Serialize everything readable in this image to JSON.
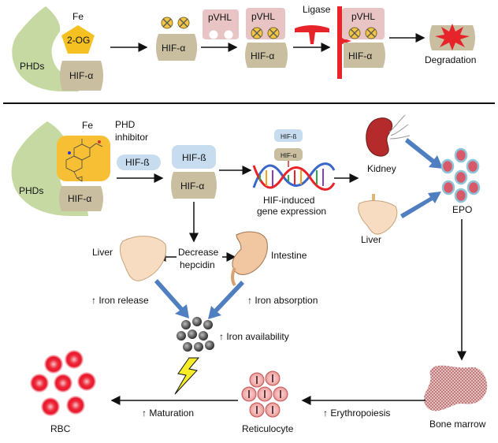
{
  "top_panel": {
    "phds_label": "PHDs",
    "fe_label": "Fe",
    "og_label": "2-OG",
    "hif_alpha": "HIF-α",
    "pvhl": "pVHL",
    "ligase": "Ligase",
    "degradation": "Degradation"
  },
  "bottom_panel": {
    "phds_label": "PHDs",
    "fe_label": "Fe",
    "phd_inhibitor": "PHD\ninhibitor",
    "hif_beta": "HIF-ß",
    "hif_alpha": "HIF-α",
    "hif_induced": "HIF-induced\ngene expression",
    "kidney": "Kidney",
    "liver_right": "Liver",
    "epo": "EPO",
    "liver_left": "Liver",
    "decrease_hepcidin": "Decrease\nhepcidin",
    "intestine": "Intestine",
    "iron_release": "↑ Iron release",
    "iron_absorption": "↑ Iron absorption",
    "iron_availability": "↑ Iron availability",
    "rbc": "RBC",
    "maturation": "↑ Maturation",
    "reticulocyte": "Reticulocyte",
    "erythropoiesis": "↑ Erythropoiesis",
    "bone_marrow": "Bone marrow"
  },
  "colors": {
    "phd_green": "#c7d9a3",
    "hif_tan": "#c9bfa0",
    "pvhl_pink": "#e8c4c4",
    "og_yellow": "#f5c021",
    "inhibitor_orange": "#f7bf33",
    "hif_beta_blue": "#c7dcef",
    "arrow_blue": "#4f7fc0",
    "rbc_red": "#e8162b",
    "ligase_red": "#e8242b"
  }
}
